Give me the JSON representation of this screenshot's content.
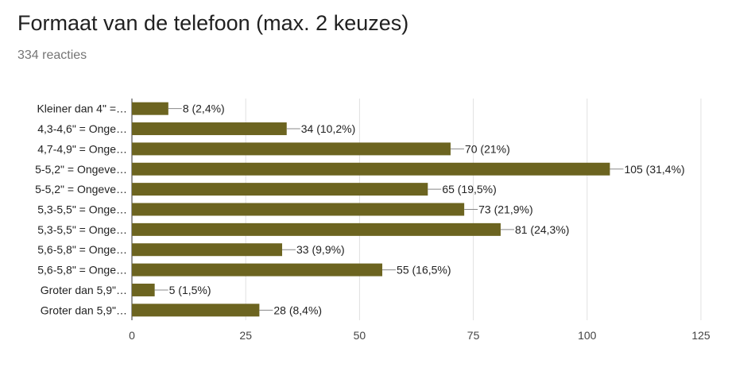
{
  "title": "Formaat van de telefoon (max. 2 keuzes)",
  "subtitle": "334 reacties",
  "chart_data": {
    "type": "bar",
    "orientation": "horizontal",
    "title": "",
    "xlabel": "",
    "ylabel": "",
    "categories": [
      "Kleiner dan 4\" =…",
      "4,3-4,6\" = Onge…",
      "4,7-4,9\" = Onge…",
      "5-5,2\" = Ongeve…",
      "5-5,2\" = Ongeve…",
      "5,3-5,5\" = Onge…",
      "5,3-5,5\" = Onge…",
      "5,6-5,8\" = Onge…",
      "5,6-5,8\" = Onge…",
      "Groter dan 5,9\"…",
      "Groter dan 5,9\"…"
    ],
    "values": [
      8,
      34,
      70,
      105,
      65,
      73,
      81,
      33,
      55,
      5,
      28
    ],
    "data_labels": [
      "8 (2,4%)",
      "34 (10,2%)",
      "70 (21%)",
      "105 (31,4%)",
      "65 (19,5%)",
      "73 (21,9%)",
      "81 (24,3%)",
      "33 (9,9%)",
      "55 (16,5%)",
      "5 (1,5%)",
      "28 (8,4%)"
    ],
    "xlim": [
      0,
      125
    ],
    "xticks": [
      0,
      25,
      50,
      75,
      100,
      125
    ],
    "xtick_labels": [
      "0",
      "25",
      "50",
      "75",
      "100",
      "125"
    ],
    "grid": true,
    "legend": "none",
    "bar_color": "#6c6420",
    "gridline_color": "#e0e0e0",
    "leader_color": "#888888"
  }
}
